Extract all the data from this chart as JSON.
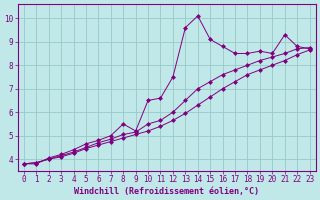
{
  "title": "",
  "xlabel": "Windchill (Refroidissement éolien,°C)",
  "ylabel": "",
  "bg_color": "#c0e8e8",
  "line_color": "#800080",
  "grid_color": "#98c8c8",
  "axis_color": "#800080",
  "tick_color": "#800080",
  "label_color": "#800080",
  "xlim": [
    -0.5,
    23.5
  ],
  "ylim": [
    3.5,
    10.6
  ],
  "yticks": [
    4,
    5,
    6,
    7,
    8,
    9,
    10
  ],
  "xticks": [
    0,
    1,
    2,
    3,
    4,
    5,
    6,
    7,
    8,
    9,
    10,
    11,
    12,
    13,
    14,
    15,
    16,
    17,
    18,
    19,
    20,
    21,
    22,
    23
  ],
  "curve1_x": [
    0,
    1,
    2,
    3,
    4,
    5,
    6,
    7,
    8,
    9,
    10,
    11,
    12,
    13,
    14,
    15,
    16,
    17,
    18,
    19,
    20,
    21,
    22,
    23
  ],
  "curve1_y": [
    3.8,
    3.8,
    4.05,
    4.2,
    4.4,
    4.65,
    4.8,
    5.0,
    5.5,
    5.2,
    6.5,
    6.6,
    7.5,
    9.6,
    10.1,
    9.1,
    8.8,
    8.5,
    8.5,
    8.6,
    8.5,
    9.3,
    8.8,
    8.7
  ],
  "curve2_x": [
    0,
    1,
    2,
    3,
    4,
    5,
    6,
    7,
    8,
    9,
    10,
    11,
    12,
    13,
    14,
    15,
    16,
    17,
    18,
    19,
    20,
    21,
    22,
    23
  ],
  "curve2_y": [
    3.8,
    3.85,
    4.0,
    4.15,
    4.3,
    4.5,
    4.7,
    4.85,
    5.05,
    5.15,
    5.5,
    5.65,
    6.0,
    6.5,
    7.0,
    7.3,
    7.6,
    7.8,
    8.0,
    8.2,
    8.35,
    8.5,
    8.7,
    8.75
  ],
  "curve3_x": [
    0,
    1,
    2,
    3,
    4,
    5,
    6,
    7,
    8,
    9,
    10,
    11,
    12,
    13,
    14,
    15,
    16,
    17,
    18,
    19,
    20,
    21,
    22,
    23
  ],
  "curve3_y": [
    3.8,
    3.85,
    4.0,
    4.1,
    4.25,
    4.45,
    4.6,
    4.75,
    4.9,
    5.05,
    5.2,
    5.4,
    5.65,
    5.95,
    6.3,
    6.65,
    7.0,
    7.3,
    7.6,
    7.8,
    8.0,
    8.2,
    8.45,
    8.65
  ],
  "xlabel_fontsize": 6,
  "tick_fontsize": 5.5
}
